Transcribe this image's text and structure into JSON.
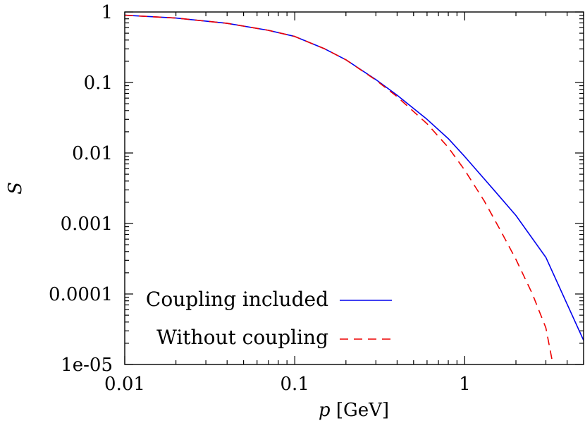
{
  "chart_data": {
    "type": "line",
    "xlabel_var": "p",
    "xlabel_unit": "[GeV]",
    "ylabel": "S",
    "x_scale": "log",
    "y_scale": "log",
    "xlim": [
      0.01,
      5
    ],
    "ylim": [
      1e-05,
      1
    ],
    "x_ticks": [
      {
        "value": 0.01,
        "label": "0.01"
      },
      {
        "value": 0.1,
        "label": "0.1"
      },
      {
        "value": 1,
        "label": "1"
      }
    ],
    "y_ticks": [
      {
        "value": 1,
        "label": "1"
      },
      {
        "value": 0.1,
        "label": "0.1"
      },
      {
        "value": 0.01,
        "label": "0.01"
      },
      {
        "value": 0.001,
        "label": "0.001"
      },
      {
        "value": 0.0001,
        "label": "0.0001"
      },
      {
        "value": 1e-05,
        "label": "1e-05"
      }
    ],
    "grid": false,
    "legend_position": "bottom-left",
    "series": [
      {
        "name": "Coupling included",
        "color": "#0000ee",
        "style": "solid",
        "x": [
          0.01,
          0.02,
          0.04,
          0.07,
          0.1,
          0.15,
          0.2,
          0.3,
          0.4,
          0.6,
          0.8,
          1.0,
          1.5,
          2.0,
          3.0,
          5.0
        ],
        "y": [
          0.9,
          0.82,
          0.69,
          0.55,
          0.45,
          0.3,
          0.21,
          0.11,
          0.066,
          0.03,
          0.016,
          0.0089,
          0.0029,
          0.0013,
          0.00033,
          2.2e-05
        ]
      },
      {
        "name": "Without coupling",
        "color": "#ee0000",
        "style": "dashed",
        "x": [
          0.01,
          0.02,
          0.04,
          0.07,
          0.1,
          0.15,
          0.2,
          0.3,
          0.4,
          0.6,
          0.8,
          1.0,
          1.3,
          1.6,
          2.0,
          2.5,
          3.0,
          3.3
        ],
        "y": [
          0.9,
          0.82,
          0.69,
          0.55,
          0.45,
          0.3,
          0.21,
          0.108,
          0.063,
          0.026,
          0.012,
          0.0057,
          0.0021,
          0.00085,
          0.00031,
          0.0001,
          3.3e-05,
          1e-05
        ]
      }
    ]
  }
}
